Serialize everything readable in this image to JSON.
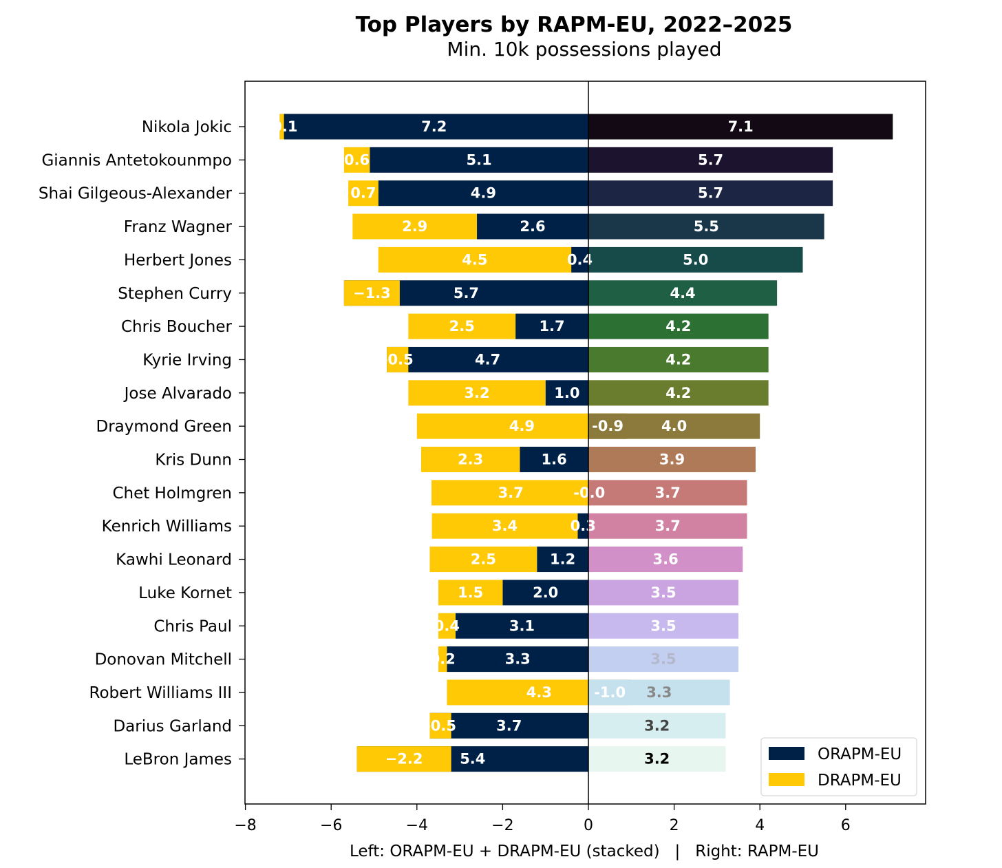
{
  "chart_data": {
    "type": "bar",
    "orientation": "horizontal",
    "title": "Top Players by RAPM-EU, 2022–2025",
    "subtitle": "Min. 10k possessions played",
    "xlabel": "Left: ORAPM-EU + DRAPM-EU (stacked)   |   Right: RAPM-EU",
    "xlim": [
      -8,
      8
    ],
    "xticks": [
      -8,
      -6,
      -4,
      -2,
      0,
      2,
      4,
      6
    ],
    "xtick_labels": [
      "−8",
      "−6",
      "−4",
      "−2",
      "0",
      "2",
      "4",
      "6"
    ],
    "legend": {
      "position": "bottom-right",
      "items": [
        "ORAPM-EU",
        "DRAPM-EU"
      ]
    },
    "colors": {
      "orapm": "#002147",
      "drapm": "#FFC905",
      "axis": "#000000"
    },
    "players": [
      {
        "name": "Nikola Jokic",
        "orapm": 7.2,
        "drapm": -0.1,
        "orapm_label": "7.2",
        "drapm_label": "-0.1",
        "rapm": 7.1,
        "rapm_label": "7.1",
        "rapm_color": "#130915",
        "rapm_text_color": "#ffffff"
      },
      {
        "name": "Giannis Antetokounmpo",
        "orapm": 5.1,
        "drapm": 0.6,
        "orapm_label": "5.1",
        "drapm_label": "0.6",
        "rapm": 5.7,
        "rapm_label": "5.7",
        "rapm_color": "#1c142e",
        "rapm_text_color": "#ffffff"
      },
      {
        "name": "Shai Gilgeous-Alexander",
        "orapm": 4.9,
        "drapm": 0.7,
        "orapm_label": "4.9",
        "drapm_label": "0.7",
        "rapm": 5.7,
        "rapm_label": "5.7",
        "rapm_color": "#1d2544",
        "rapm_text_color": "#ffffff"
      },
      {
        "name": "Franz Wagner",
        "orapm": 2.6,
        "drapm": 2.9,
        "orapm_label": "2.6",
        "drapm_label": "2.9",
        "rapm": 5.5,
        "rapm_label": "5.5",
        "rapm_color": "#1a3649",
        "rapm_text_color": "#ffffff"
      },
      {
        "name": "Herbert Jones",
        "orapm": 0.4,
        "drapm": 4.5,
        "orapm_label": "0.4",
        "drapm_label": "4.5",
        "rapm": 5.0,
        "rapm_label": "5.0",
        "rapm_color": "#164b4a",
        "rapm_text_color": "#ffffff"
      },
      {
        "name": "Stephen Curry",
        "orapm": 5.7,
        "drapm": -1.3,
        "orapm_label": "5.7",
        "drapm_label": "−1.3",
        "rapm": 4.4,
        "rapm_label": "4.4",
        "rapm_color": "#1f6044",
        "rapm_text_color": "#ffffff"
      },
      {
        "name": "Chris Boucher",
        "orapm": 1.7,
        "drapm": 2.5,
        "orapm_label": "1.7",
        "drapm_label": "2.5",
        "rapm": 4.2,
        "rapm_label": "4.2",
        "rapm_color": "#2c7034",
        "rapm_text_color": "#ffffff"
      },
      {
        "name": "Kyrie Irving",
        "orapm": 4.7,
        "drapm": -0.5,
        "orapm_label": "4.7",
        "drapm_label": "-0.5",
        "rapm": 4.2,
        "rapm_label": "4.2",
        "rapm_color": "#4a7a2e",
        "rapm_text_color": "#ffffff"
      },
      {
        "name": "Jose Alvarado",
        "orapm": 1.0,
        "drapm": 3.2,
        "orapm_label": "1.0",
        "drapm_label": "3.2",
        "rapm": 4.2,
        "rapm_label": "4.2",
        "rapm_color": "#6a7d2e",
        "rapm_text_color": "#ffffff"
      },
      {
        "name": "Draymond Green",
        "orapm": -0.9,
        "drapm": 4.9,
        "orapm_label": "-0.9",
        "drapm_label": "4.9",
        "rapm": 4.0,
        "rapm_label": "4.0",
        "rapm_color": "#8b7a3c",
        "rapm_text_color": "#ffffff"
      },
      {
        "name": "Kris Dunn",
        "orapm": 1.6,
        "drapm": 2.3,
        "orapm_label": "1.6",
        "drapm_label": "2.3",
        "rapm": 3.9,
        "rapm_label": "3.9",
        "rapm_color": "#af7a58",
        "rapm_text_color": "#ffffff"
      },
      {
        "name": "Chet Holmgren",
        "orapm": -0.04,
        "drapm": 3.7,
        "orapm_label": "-0.0",
        "drapm_label": "3.7",
        "rapm": 3.7,
        "rapm_label": "3.7",
        "rapm_color": "#c67a78",
        "rapm_text_color": "#ffffff"
      },
      {
        "name": "Kenrich Williams",
        "orapm": 0.25,
        "drapm": 3.4,
        "orapm_label": "0.3",
        "drapm_label": "3.4",
        "rapm": 3.7,
        "rapm_label": "3.7",
        "rapm_color": "#d182a3",
        "rapm_text_color": "#ffffff"
      },
      {
        "name": "Kawhi Leonard",
        "orapm": 1.2,
        "drapm": 2.5,
        "orapm_label": "1.2",
        "drapm_label": "2.5",
        "rapm": 3.6,
        "rapm_label": "3.6",
        "rapm_color": "#d290c8",
        "rapm_text_color": "#ffffff"
      },
      {
        "name": "Luke Kornet",
        "orapm": 2.0,
        "drapm": 1.5,
        "orapm_label": "2.0",
        "drapm_label": "1.5",
        "rapm": 3.5,
        "rapm_label": "3.5",
        "rapm_color": "#caa4e1",
        "rapm_text_color": "#ffffff"
      },
      {
        "name": "Chris Paul",
        "orapm": 3.1,
        "drapm": 0.4,
        "orapm_label": "3.1",
        "drapm_label": "0.4",
        "rapm": 3.5,
        "rapm_label": "3.5",
        "rapm_color": "#c7b9ed",
        "rapm_text_color": "#ffffff"
      },
      {
        "name": "Donovan Mitchell",
        "orapm": 3.3,
        "drapm": 0.2,
        "orapm_label": "3.3",
        "drapm_label": "0.2",
        "rapm": 3.5,
        "rapm_label": "3.5",
        "rapm_color": "#c3cff1",
        "rapm_text_color": "#b4b8cc"
      },
      {
        "name": "Robert Williams III",
        "orapm": -1.0,
        "drapm": 4.3,
        "orapm_label": "-1.0",
        "drapm_label": "4.3",
        "rapm": 3.3,
        "rapm_label": "3.3",
        "rapm_color": "#c6e1ee",
        "rapm_text_color": "#888888"
      },
      {
        "name": "Darius Garland",
        "orapm": 3.7,
        "drapm": -0.5,
        "orapm_label": "3.7",
        "drapm_label": "-0.5",
        "rapm": 3.2,
        "rapm_label": "3.2",
        "rapm_color": "#d6eef0",
        "rapm_text_color": "#444444"
      },
      {
        "name": "LeBron James",
        "orapm": 5.4,
        "drapm": -2.2,
        "orapm_label": "5.4",
        "drapm_label": "−2.2",
        "rapm": 3.2,
        "rapm_label": "3.2",
        "rapm_color": "#e8f6f0",
        "rapm_text_color": "#000000"
      }
    ]
  }
}
